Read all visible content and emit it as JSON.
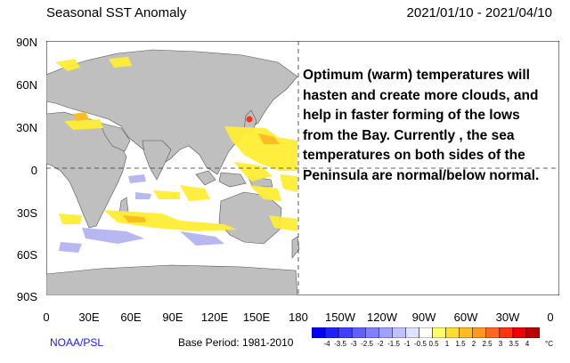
{
  "header": {
    "title": "Seasonal SST Anomaly",
    "date_range": "2021/01/10 - 2021/04/10"
  },
  "axes": {
    "lat_labels": [
      "90N",
      "60N",
      "30N",
      "0",
      "30S",
      "60S",
      "90S"
    ],
    "lon_labels": [
      "0",
      "30E",
      "60E",
      "90E",
      "120E",
      "150E",
      "180",
      "150W",
      "120W",
      "90W",
      "60W",
      "30W",
      "0"
    ]
  },
  "annotation": {
    "lines": [
      "Optimum (warm) temperatures will",
      "hasten and create more clouds, and",
      "help in faster forming of the lows",
      "from the Bay. Currently , the sea",
      "temperatures on both sides of the",
      "Peninsula are normal/below normal."
    ]
  },
  "footer": {
    "source": "NOAA/PSL",
    "base_period": "Base Period: 1981-2010"
  },
  "colorbar": {
    "ticks": [
      "-4",
      "-3.5",
      "-3",
      "-2.5",
      "-2",
      "-1.5",
      "-1",
      "-0.5",
      "0.5",
      "1",
      "1.5",
      "2",
      "2.5",
      "3",
      "3.5",
      "4"
    ],
    "unit": "°C",
    "colors": [
      "#0000ff",
      "#2020ff",
      "#4040ff",
      "#6060ff",
      "#8080ff",
      "#a0a0ff",
      "#c0c0ff",
      "#e0e0ff",
      "#ffffff",
      "#ffff66",
      "#ffdd33",
      "#ffbb22",
      "#ff9922",
      "#ff6622",
      "#ff3311",
      "#ee0000",
      "#bb0000"
    ]
  },
  "colors": {
    "land": "#bfbfbf",
    "warm": "#ffee33",
    "warm2": "#ffcc33",
    "hot": "#ff3311",
    "cool": "#b0b0f0"
  }
}
